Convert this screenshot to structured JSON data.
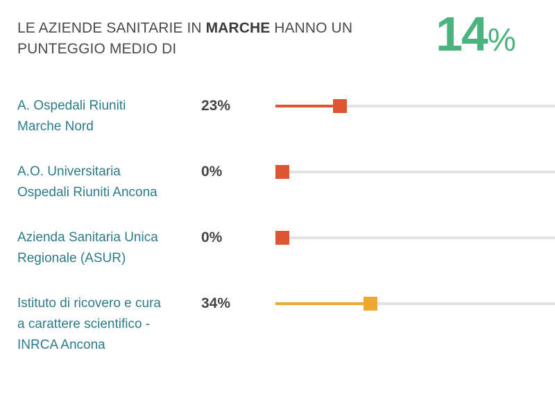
{
  "header": {
    "text_before": "LE AZIENDE SANITARIE IN ",
    "region": "MARCHE",
    "text_after": " HANNO UN PUNTEGGIO MEDIO DI",
    "score_value": "14",
    "score_unit": "%",
    "score_color": "#4bb37e"
  },
  "chart_data": {
    "type": "bar",
    "orientation": "horizontal",
    "xlim": [
      0,
      100
    ],
    "unit": "%",
    "grid": false,
    "categories": [
      [
        "A. Ospedali Riuniti",
        "Marche Nord"
      ],
      [
        "A.O. Universitaria",
        "Ospedali Riuniti Ancona"
      ],
      [
        "Azienda Sanitaria Unica",
        "Regionale (ASUR)"
      ],
      [
        "Istituto di ricovero e cura",
        "a carattere scientifico -",
        "INRCA Ancona"
      ]
    ],
    "values": [
      23,
      0,
      0,
      34
    ],
    "value_labels": [
      "23%",
      "0%",
      "0%",
      "34%"
    ],
    "colors": [
      "#dd5533",
      "#dd5533",
      "#dd5533",
      "#eea832"
    ],
    "track_color": "#e2e2e2"
  }
}
